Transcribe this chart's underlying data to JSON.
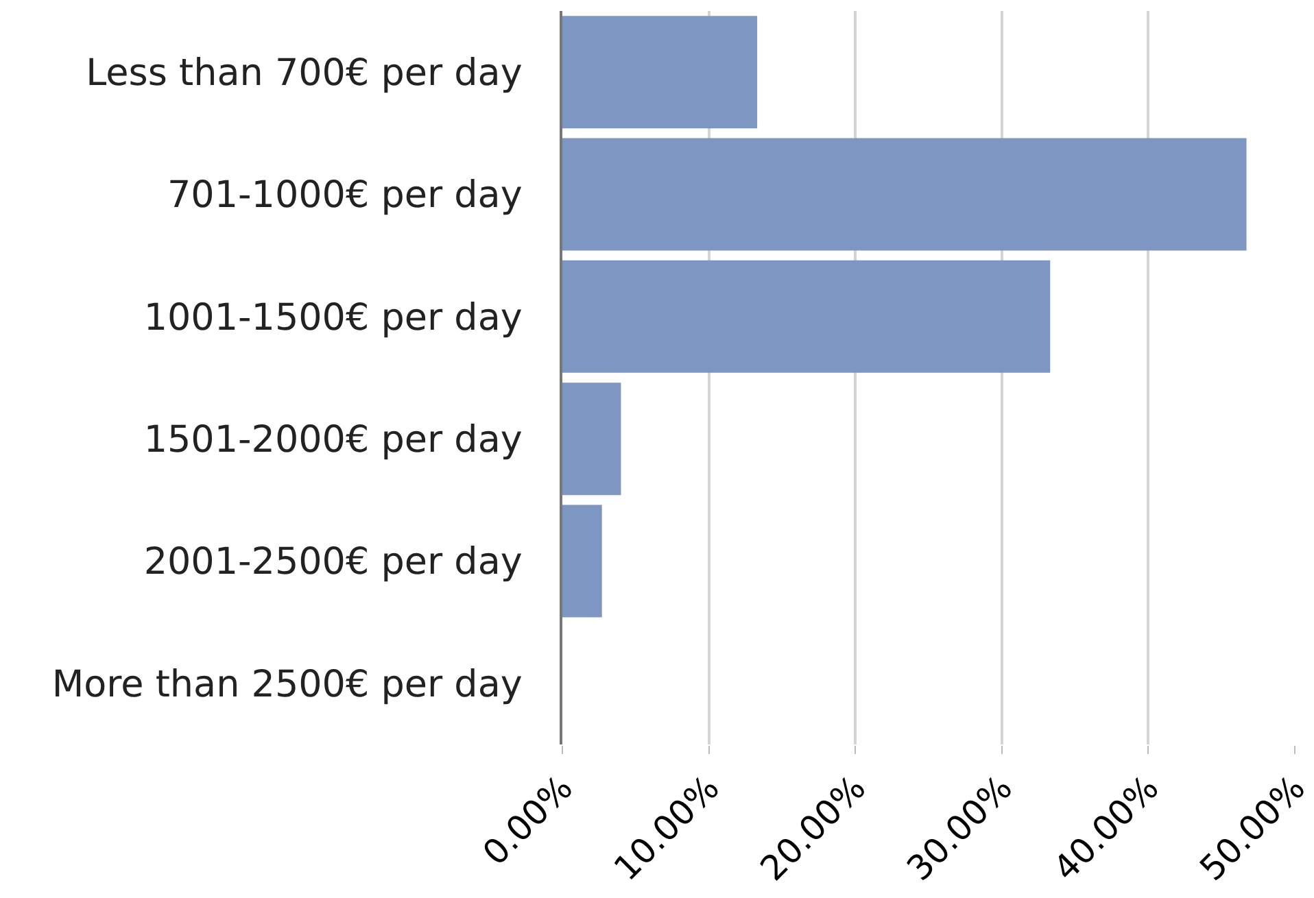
{
  "chart_data": {
    "type": "bar",
    "orientation": "horizontal",
    "categories": [
      "Less than 700€ per day",
      "701-1000€ per day",
      "1001-1500€ per day",
      "1501-2000€ per day",
      "2001-2500€ per day",
      "More than 2500€ per day"
    ],
    "values": [
      13.3,
      46.7,
      33.3,
      4.0,
      2.7,
      0
    ],
    "color": "#7e96c2",
    "xlim": [
      0,
      50
    ],
    "xticks": [
      {
        "value": 0,
        "label": "0.00%"
      },
      {
        "value": 10,
        "label": "10.00%"
      },
      {
        "value": 20,
        "label": "20.00%"
      },
      {
        "value": 30,
        "label": "30.00%"
      },
      {
        "value": 40,
        "label": "40.00%"
      },
      {
        "value": 50,
        "label": "50.00%"
      }
    ],
    "grid": "x"
  }
}
